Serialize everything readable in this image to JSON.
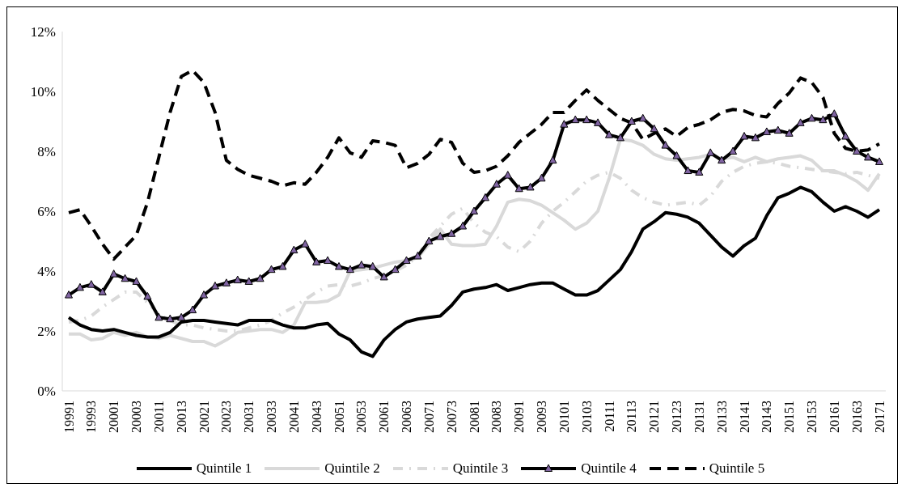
{
  "chart_data": {
    "type": "line",
    "categories": [
      "19991",
      null,
      "19993",
      null,
      "20001",
      null,
      "20003",
      null,
      "20011",
      null,
      "20013",
      null,
      "20021",
      null,
      "20023",
      null,
      "20031",
      null,
      "20033",
      null,
      "20041",
      null,
      "20043",
      null,
      "20051",
      null,
      "20053",
      null,
      "20061",
      null,
      "20063",
      null,
      "20071",
      null,
      "20073",
      null,
      "20081",
      null,
      "20083",
      null,
      "20091",
      null,
      "20093",
      null,
      "20101",
      null,
      "20103",
      null,
      "20111",
      null,
      "20113",
      null,
      "20121",
      null,
      "20123",
      null,
      "20131",
      null,
      "20133",
      null,
      "20141",
      null,
      "20143",
      null,
      "20151",
      null,
      "20153",
      null,
      "20161",
      null,
      "20163",
      null,
      "20171"
    ],
    "series": [
      {
        "name": "Quintile 1",
        "color": "#000000",
        "line_style": "solid",
        "marker": "none",
        "values": [
          2.45,
          2.2,
          2.05,
          2.0,
          2.05,
          1.95,
          1.85,
          1.8,
          1.8,
          1.95,
          2.3,
          2.35,
          2.35,
          2.3,
          2.25,
          2.2,
          2.35,
          2.35,
          2.35,
          2.2,
          2.1,
          2.1,
          2.2,
          2.25,
          1.9,
          1.7,
          1.3,
          1.15,
          1.7,
          2.05,
          2.3,
          2.4,
          2.45,
          2.5,
          2.85,
          3.3,
          3.4,
          3.45,
          3.55,
          3.35,
          3.45,
          3.55,
          3.6,
          3.6,
          3.4,
          3.2,
          3.2,
          3.35,
          3.7,
          4.05,
          4.65,
          5.4,
          5.65,
          5.95,
          5.9,
          5.8,
          5.6,
          5.2,
          4.8,
          4.5,
          4.85,
          5.1,
          5.85,
          6.45,
          6.6,
          6.8,
          6.65,
          6.3,
          6.0,
          6.15,
          6.0,
          5.8,
          6.05
        ]
      },
      {
        "name": "Quintile 2",
        "color": "#d9d9d9",
        "line_style": "solid",
        "marker": "none",
        "values": [
          1.9,
          1.9,
          1.7,
          1.75,
          1.95,
          1.85,
          1.95,
          1.8,
          1.75,
          1.85,
          1.75,
          1.65,
          1.65,
          1.5,
          1.7,
          1.95,
          2.0,
          2.05,
          2.05,
          1.95,
          2.2,
          2.95,
          2.95,
          3.0,
          3.2,
          4.0,
          4.05,
          4.1,
          4.2,
          4.3,
          4.35,
          4.45,
          4.9,
          5.4,
          4.9,
          4.85,
          4.85,
          4.9,
          5.5,
          6.3,
          6.4,
          6.35,
          6.2,
          5.95,
          5.7,
          5.4,
          5.6,
          6.0,
          7.1,
          8.4,
          8.35,
          8.2,
          7.9,
          7.75,
          7.7,
          7.75,
          7.8,
          7.9,
          7.75,
          7.8,
          7.65,
          7.8,
          7.65,
          7.75,
          7.8,
          7.85,
          7.7,
          7.35,
          7.35,
          7.2,
          7.0,
          6.7,
          7.25
        ]
      },
      {
        "name": "Quintile 3",
        "color": "#d9d9d9",
        "line_style": "dashdot",
        "marker": "none",
        "values": [
          2.3,
          2.35,
          2.5,
          2.8,
          3.05,
          3.3,
          3.3,
          2.95,
          2.55,
          2.35,
          2.2,
          2.2,
          2.1,
          2.05,
          2.0,
          2.0,
          2.1,
          2.2,
          2.35,
          2.6,
          2.8,
          3.05,
          3.3,
          3.5,
          3.55,
          3.5,
          3.6,
          3.75,
          3.85,
          4.0,
          4.2,
          4.5,
          5.1,
          5.5,
          5.9,
          6.1,
          5.6,
          5.3,
          5.15,
          4.8,
          4.65,
          5.0,
          5.6,
          6.0,
          6.3,
          6.65,
          7.0,
          7.2,
          7.3,
          7.1,
          6.7,
          6.45,
          6.3,
          6.2,
          6.25,
          6.3,
          6.2,
          6.5,
          7.0,
          7.3,
          7.5,
          7.6,
          7.65,
          7.6,
          7.5,
          7.45,
          7.4,
          7.35,
          7.3,
          7.25,
          7.3,
          7.2,
          7.1
        ]
      },
      {
        "name": "Quintile 4",
        "color": "#000000",
        "line_style": "solid",
        "marker": "triangle",
        "values": [
          3.2,
          3.45,
          3.55,
          3.3,
          3.9,
          3.75,
          3.65,
          3.15,
          2.45,
          2.4,
          2.45,
          2.7,
          3.2,
          3.5,
          3.6,
          3.7,
          3.65,
          3.75,
          4.05,
          4.15,
          4.7,
          4.9,
          4.3,
          4.35,
          4.15,
          4.05,
          4.2,
          4.15,
          3.8,
          4.05,
          4.35,
          4.5,
          5.0,
          5.15,
          5.25,
          5.5,
          6.0,
          6.45,
          6.9,
          7.2,
          6.75,
          6.8,
          7.1,
          7.7,
          8.9,
          9.05,
          9.05,
          8.95,
          8.55,
          8.45,
          9.0,
          9.1,
          8.75,
          8.2,
          7.85,
          7.35,
          7.3,
          7.95,
          7.7,
          8.0,
          8.5,
          8.45,
          8.65,
          8.7,
          8.6,
          8.95,
          9.1,
          9.05,
          9.25,
          8.5,
          8.0,
          7.8,
          7.65
        ]
      },
      {
        "name": "Quintile 5",
        "color": "#000000",
        "line_style": "dashed",
        "marker": "none",
        "values": [
          5.95,
          6.05,
          5.5,
          4.9,
          4.4,
          4.8,
          5.2,
          6.3,
          7.8,
          9.3,
          10.5,
          10.7,
          10.3,
          9.3,
          7.7,
          7.4,
          7.2,
          7.1,
          7.0,
          6.85,
          6.95,
          6.9,
          7.3,
          7.8,
          8.45,
          7.95,
          7.8,
          8.35,
          8.3,
          8.2,
          7.45,
          7.6,
          7.9,
          8.4,
          8.3,
          7.6,
          7.3,
          7.35,
          7.5,
          7.85,
          8.3,
          8.6,
          8.9,
          9.3,
          9.3,
          9.7,
          10.05,
          9.7,
          9.4,
          9.1,
          8.95,
          8.4,
          8.6,
          8.75,
          8.5,
          8.8,
          8.9,
          9.05,
          9.3,
          9.4,
          9.35,
          9.2,
          9.15,
          9.6,
          9.95,
          10.45,
          10.3,
          9.8,
          8.6,
          8.1,
          8.0,
          8.05,
          8.25
        ]
      }
    ],
    "ylim": [
      0,
      12
    ],
    "yticks": [
      {
        "value": 0,
        "label": "0%"
      },
      {
        "value": 2,
        "label": "2%"
      },
      {
        "value": 4,
        "label": "4%"
      },
      {
        "value": 6,
        "label": "6%"
      },
      {
        "value": 8,
        "label": "8%"
      },
      {
        "value": 10,
        "label": "10%"
      },
      {
        "value": 12,
        "label": "12%"
      }
    ],
    "grid": false,
    "legend": "bottom"
  }
}
